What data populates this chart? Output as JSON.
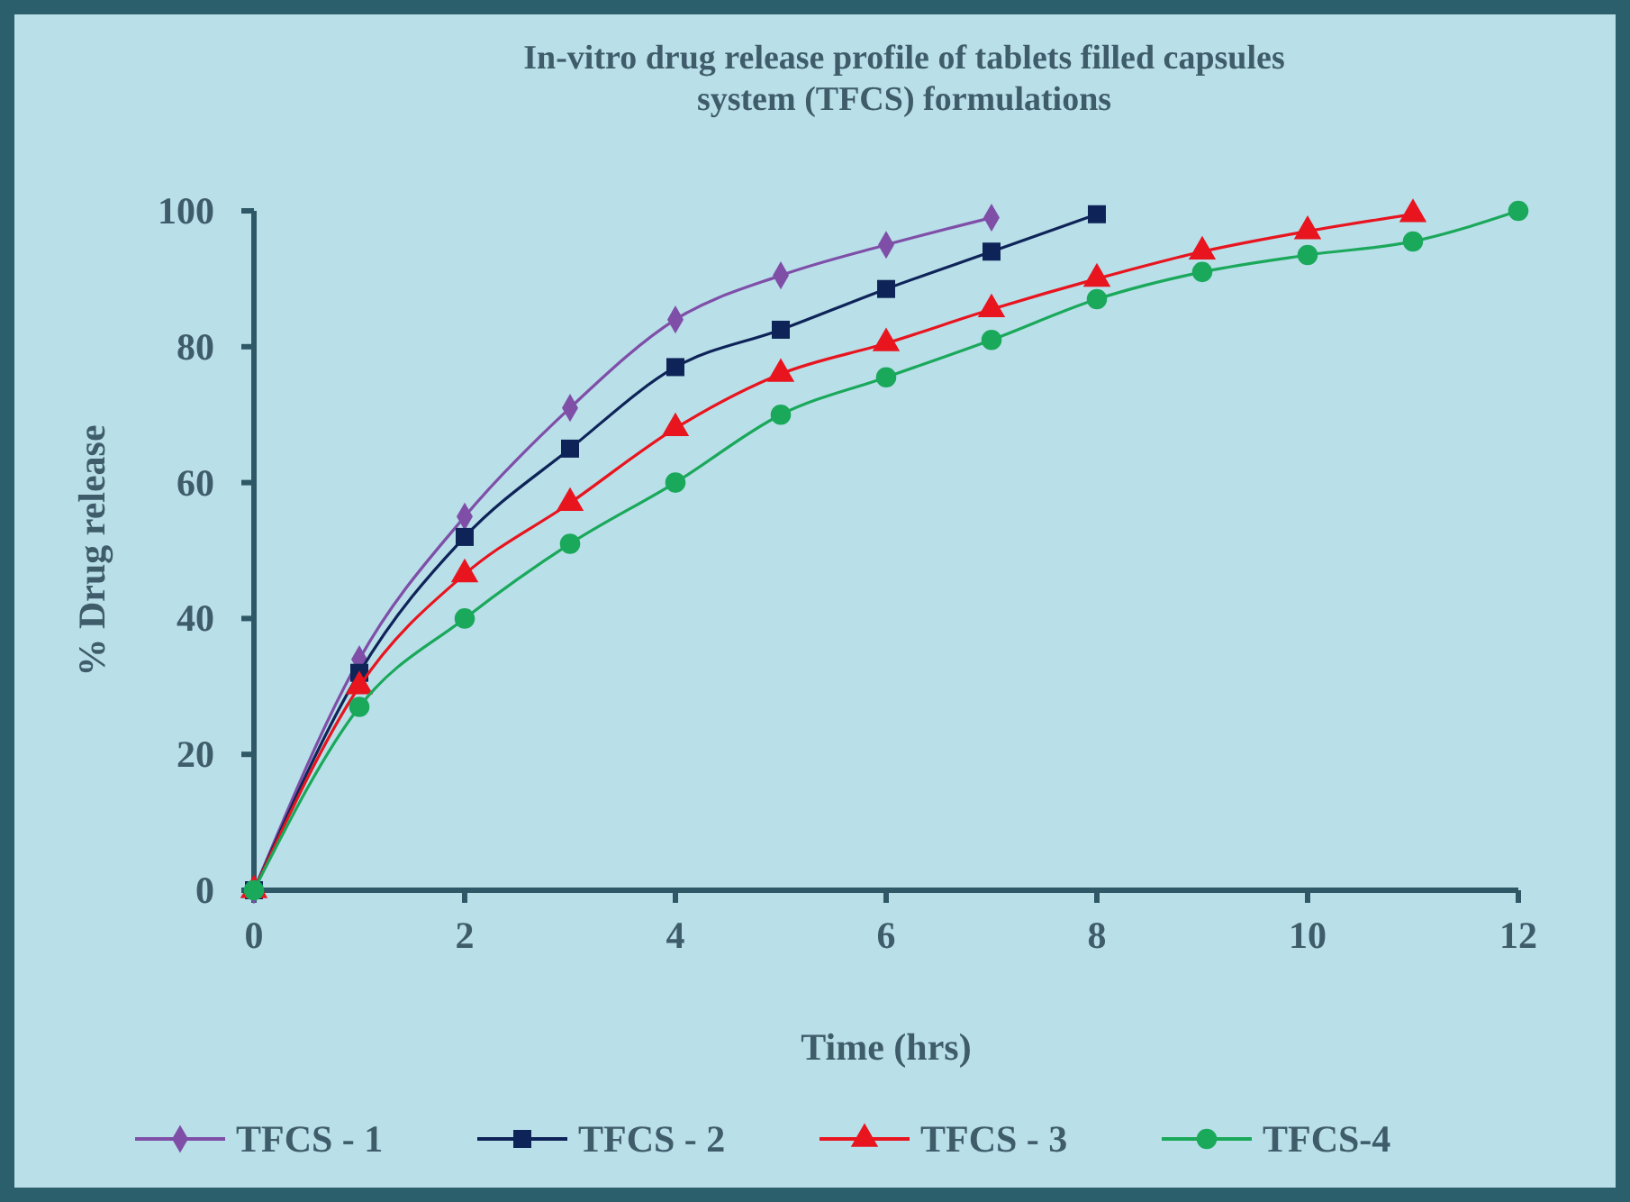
{
  "chart_data": {
    "type": "line",
    "title": "In-vitro drug release profile of tablets filled capsules system (TFCS) formulations",
    "xlabel": "Time (hrs)",
    "ylabel": "% Drug release",
    "xlim": [
      0,
      12
    ],
    "xticks": [
      0,
      2,
      4,
      6,
      8,
      10,
      12
    ],
    "ylim": [
      0,
      100
    ],
    "yticks": [
      0,
      20,
      40,
      60,
      80,
      100
    ],
    "grid": false,
    "legend": "bottom",
    "series": [
      {
        "name": "TFCS - 1",
        "color": "#7f4fa8",
        "marker": "diamond",
        "x": [
          0,
          1,
          2,
          3,
          4,
          5,
          6,
          7
        ],
        "values": [
          0,
          34,
          55,
          71,
          84,
          90.5,
          95,
          99
        ]
      },
      {
        "name": "TFCS - 2",
        "color": "#0e2458",
        "marker": "square",
        "x": [
          0,
          1,
          2,
          3,
          4,
          5,
          6,
          7,
          8
        ],
        "values": [
          0,
          32,
          52,
          65,
          77,
          82.5,
          88.5,
          94,
          99.5
        ]
      },
      {
        "name": "TFCS - 3",
        "color": "#e8141e",
        "marker": "triangle",
        "x": [
          0,
          1,
          2,
          3,
          4,
          5,
          6,
          7,
          8,
          9,
          10,
          11
        ],
        "values": [
          0,
          30,
          46.5,
          57,
          68,
          76,
          80.5,
          85.5,
          90,
          94,
          97,
          99.5
        ]
      },
      {
        "name": "TFCS-4",
        "color": "#1aa85a",
        "marker": "circle",
        "x": [
          0,
          1,
          2,
          3,
          4,
          5,
          6,
          7,
          8,
          9,
          10,
          11,
          12
        ],
        "values": [
          0,
          27,
          40,
          51,
          60,
          70,
          75.5,
          81,
          87,
          91,
          93.5,
          95.5,
          100
        ]
      }
    ]
  }
}
